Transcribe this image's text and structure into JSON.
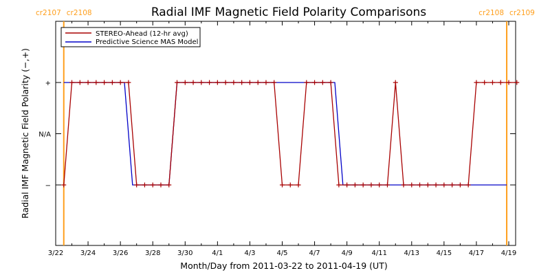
{
  "chart_data": {
    "type": "line",
    "title": "Radial IMF Magnetic Field Polarity Comparisons",
    "xlabel": "Month/Day from 2011-03-22 to 2011-04-19 (UT)",
    "ylabel": "Radial IMF Magnetic Field Polarity (−,+)",
    "x_range": [
      "2011-03-22",
      "2011-04-19"
    ],
    "x_tick_labels": [
      "3/22",
      "3/24",
      "3/26",
      "3/28",
      "3/30",
      "4/1",
      "4/3",
      "4/5",
      "4/7",
      "4/9",
      "4/11",
      "4/13",
      "4/15",
      "4/17",
      "4/19"
    ],
    "y_categories": [
      "−",
      "N/A",
      "+"
    ],
    "y_category_values": [
      -1,
      0,
      1
    ],
    "carrington_markers": [
      {
        "date": "2011-03-22T12:00",
        "left_label": "cr2107",
        "right_label": "cr2108",
        "color": "#ff9f1c"
      },
      {
        "date": "2011-04-18T21:00",
        "left_label": "cr2108",
        "right_label": "cr2109",
        "color": "#ff9f1c"
      }
    ],
    "legend": {
      "placement": "top-left"
    },
    "series": [
      {
        "name": "STEREO-Ahead (12-hr avg)",
        "color": "#a80000",
        "markers": "plus",
        "points": [
          [
            "2011-03-22T12:00",
            -1
          ],
          [
            "2011-03-23T00:00",
            1
          ],
          [
            "2011-03-23T12:00",
            1
          ],
          [
            "2011-03-24T00:00",
            1
          ],
          [
            "2011-03-24T12:00",
            1
          ],
          [
            "2011-03-25T00:00",
            1
          ],
          [
            "2011-03-25T12:00",
            1
          ],
          [
            "2011-03-26T00:00",
            1
          ],
          [
            "2011-03-26T12:00",
            1
          ],
          [
            "2011-03-27T00:00",
            -1
          ],
          [
            "2011-03-27T12:00",
            -1
          ],
          [
            "2011-03-28T00:00",
            -1
          ],
          [
            "2011-03-28T12:00",
            -1
          ],
          [
            "2011-03-29T00:00",
            -1
          ],
          [
            "2011-03-29T12:00",
            1
          ],
          [
            "2011-03-30T00:00",
            1
          ],
          [
            "2011-03-30T12:00",
            1
          ],
          [
            "2011-03-31T00:00",
            1
          ],
          [
            "2011-03-31T12:00",
            1
          ],
          [
            "2011-04-01T00:00",
            1
          ],
          [
            "2011-04-01T12:00",
            1
          ],
          [
            "2011-04-02T00:00",
            1
          ],
          [
            "2011-04-02T12:00",
            1
          ],
          [
            "2011-04-03T00:00",
            1
          ],
          [
            "2011-04-03T12:00",
            1
          ],
          [
            "2011-04-04T00:00",
            1
          ],
          [
            "2011-04-04T12:00",
            1
          ],
          [
            "2011-04-05T00:00",
            -1
          ],
          [
            "2011-04-05T12:00",
            -1
          ],
          [
            "2011-04-06T00:00",
            -1
          ],
          [
            "2011-04-06T12:00",
            1
          ],
          [
            "2011-04-07T00:00",
            1
          ],
          [
            "2011-04-07T12:00",
            1
          ],
          [
            "2011-04-08T00:00",
            1
          ],
          [
            "2011-04-08T12:00",
            -1
          ],
          [
            "2011-04-09T00:00",
            -1
          ],
          [
            "2011-04-09T12:00",
            -1
          ],
          [
            "2011-04-10T00:00",
            -1
          ],
          [
            "2011-04-10T12:00",
            -1
          ],
          [
            "2011-04-11T00:00",
            -1
          ],
          [
            "2011-04-11T12:00",
            -1
          ],
          [
            "2011-04-12T00:00",
            1
          ],
          [
            "2011-04-12T12:00",
            -1
          ],
          [
            "2011-04-13T00:00",
            -1
          ],
          [
            "2011-04-13T12:00",
            -1
          ],
          [
            "2011-04-14T00:00",
            -1
          ],
          [
            "2011-04-14T12:00",
            -1
          ],
          [
            "2011-04-15T00:00",
            -1
          ],
          [
            "2011-04-15T12:00",
            -1
          ],
          [
            "2011-04-16T00:00",
            -1
          ],
          [
            "2011-04-16T12:00",
            -1
          ],
          [
            "2011-04-17T00:00",
            1
          ],
          [
            "2011-04-17T12:00",
            1
          ],
          [
            "2011-04-18T00:00",
            1
          ],
          [
            "2011-04-18T12:00",
            1
          ],
          [
            "2011-04-19T00:00",
            1
          ],
          [
            "2011-04-19T12:00",
            1
          ]
        ]
      },
      {
        "name": "Predictive Science MAS Model",
        "color": "#0000c8",
        "markers": "none",
        "points": [
          [
            "2011-03-22T12:00",
            1
          ],
          [
            "2011-03-26T06:00",
            1
          ],
          [
            "2011-03-26T18:00",
            -1
          ],
          [
            "2011-03-29T00:00",
            -1
          ],
          [
            "2011-03-29T12:00",
            1
          ],
          [
            "2011-04-08T06:00",
            1
          ],
          [
            "2011-04-08T18:00",
            -1
          ],
          [
            "2011-04-18T21:00",
            -1
          ]
        ]
      }
    ]
  }
}
